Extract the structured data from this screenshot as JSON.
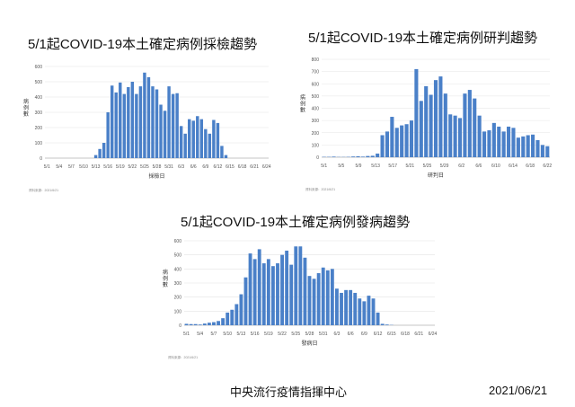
{
  "footer": {
    "org": "中央流行疫情指揮中心",
    "date": "2021/06/21"
  },
  "chart_data": [
    {
      "type": "bar",
      "title": "5/1起COVID-19本土確定病例採檢趨勢",
      "xlabel": "採檢日",
      "ylabel": "病例數",
      "source": "資料來源：2021/6/21",
      "ylim": [
        0,
        600
      ],
      "yticks": [
        0,
        100,
        200,
        300,
        400,
        500,
        600
      ],
      "xtick_labels": [
        "5/1",
        "5/4",
        "5/7",
        "5/10",
        "5/13",
        "5/16",
        "5/19",
        "5/22",
        "5/25",
        "5/28",
        "5/31",
        "6/3",
        "6/6",
        "6/9",
        "6/12",
        "6/15",
        "6/18",
        "6/21",
        "6/24"
      ],
      "values": [
        0,
        0,
        0,
        0,
        0,
        0,
        0,
        0,
        0,
        0,
        0,
        0,
        20,
        60,
        100,
        300,
        475,
        430,
        495,
        420,
        465,
        500,
        420,
        470,
        560,
        530,
        470,
        450,
        350,
        310,
        470,
        420,
        425,
        210,
        160,
        255,
        245,
        275,
        255,
        190,
        160,
        250,
        230,
        80,
        20,
        0,
        0,
        0,
        0,
        0,
        0,
        0,
        0,
        0,
        0
      ]
    },
    {
      "type": "bar",
      "title": "5/1起COVID-19本土確定病例研判趨勢",
      "xlabel": "研判日",
      "ylabel": "病例數",
      "source": "資料來源：2021/6/21",
      "ylim": [
        0,
        800
      ],
      "yticks": [
        0,
        100,
        200,
        300,
        400,
        500,
        600,
        700,
        800
      ],
      "xtick_labels": [
        "5/1",
        "5/5",
        "5/9",
        "5/13",
        "5/17",
        "5/21",
        "5/25",
        "5/29",
        "6/2",
        "6/6",
        "6/10",
        "6/14",
        "6/18",
        "6/22"
      ],
      "values": [
        3,
        3,
        5,
        2,
        2,
        3,
        6,
        8,
        5,
        10,
        12,
        30,
        180,
        210,
        330,
        240,
        260,
        270,
        300,
        720,
        460,
        580,
        510,
        630,
        660,
        520,
        350,
        340,
        320,
        520,
        550,
        480,
        340,
        210,
        220,
        280,
        250,
        210,
        250,
        240,
        160,
        170,
        180,
        185,
        140,
        100,
        90
      ]
    },
    {
      "type": "bar",
      "title": "5/1起COVID-19本土確定病例發病趨勢",
      "xlabel": "發病日",
      "ylabel": "病例數",
      "source": "資料來源：2021/6/21",
      "ylim": [
        0,
        600
      ],
      "yticks": [
        0,
        100,
        200,
        300,
        400,
        500,
        600
      ],
      "xtick_labels": [
        "5/1",
        "5/4",
        "5/7",
        "5/10",
        "5/13",
        "5/16",
        "5/19",
        "5/22",
        "5/25",
        "5/28",
        "5/31",
        "6/3",
        "6/6",
        "6/9",
        "6/12",
        "6/15",
        "6/18",
        "6/21",
        "6/24"
      ],
      "values": [
        10,
        8,
        8,
        5,
        12,
        18,
        22,
        30,
        50,
        90,
        110,
        150,
        220,
        340,
        510,
        470,
        540,
        440,
        470,
        420,
        440,
        500,
        530,
        430,
        560,
        560,
        480,
        350,
        330,
        370,
        410,
        390,
        400,
        260,
        230,
        250,
        250,
        230,
        190,
        170,
        210,
        190,
        90,
        10,
        5,
        2,
        0,
        0,
        0,
        0,
        0,
        0,
        0,
        0,
        0
      ]
    }
  ]
}
